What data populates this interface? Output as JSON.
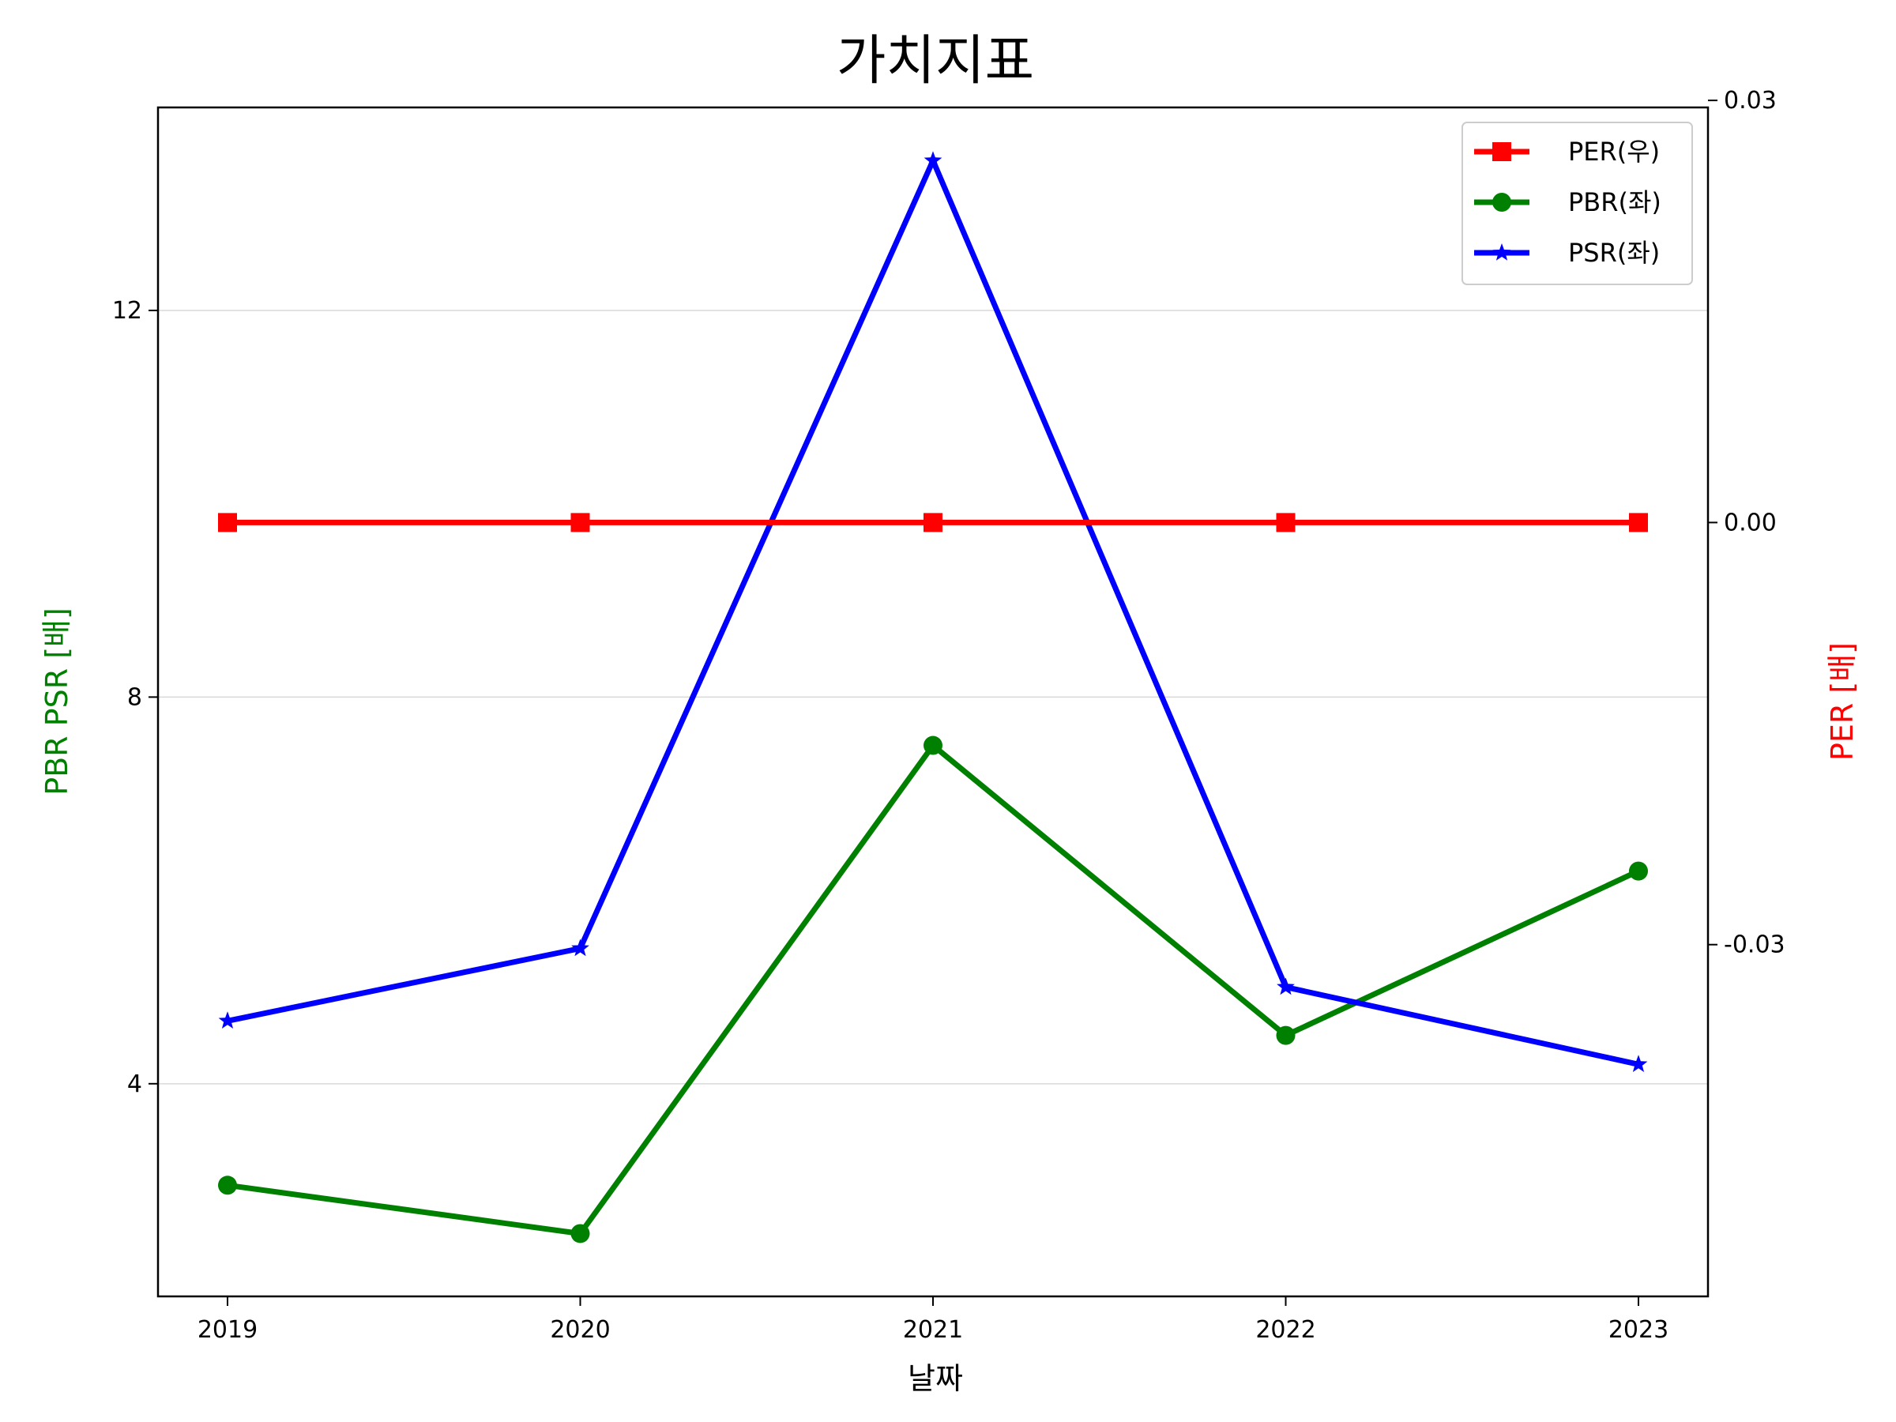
{
  "chart_data": {
    "type": "line",
    "title": "가치지표",
    "xlabel": "날짜",
    "ylabel_left": "PBR PSR [배]",
    "ylabel_right": "PER [배]",
    "categories": [
      "2019",
      "2020",
      "2021",
      "2022",
      "2023"
    ],
    "left_axis": {
      "ylim": [
        1.8,
        14.1
      ],
      "ticks": [
        4,
        8,
        12
      ],
      "tick_labels": [
        "4",
        "8",
        "12"
      ]
    },
    "right_axis": {
      "ylim": [
        -0.055,
        0.0295
      ],
      "ticks": [
        -0.03,
        0.0,
        0.03
      ],
      "tick_labels": [
        "-0.03",
        "0.00",
        "0.03"
      ]
    },
    "grid": "horizontal-left-axis",
    "legend_position": "top-right",
    "series": [
      {
        "name": "PER(우)",
        "axis": "right",
        "color": "#ff0000",
        "marker": "square",
        "values": [
          0,
          0,
          0,
          0,
          0
        ]
      },
      {
        "name": "PBR(좌)",
        "axis": "left",
        "color": "#008000",
        "marker": "circle",
        "values": [
          2.95,
          2.45,
          7.5,
          4.5,
          6.2
        ]
      },
      {
        "name": "PSR(좌)",
        "axis": "left",
        "color": "#0000ff",
        "marker": "star",
        "values": [
          4.65,
          5.4,
          13.55,
          5.0,
          4.2
        ]
      }
    ],
    "axis_label_colors": {
      "left": "#008000",
      "right": "#ff0000"
    }
  }
}
